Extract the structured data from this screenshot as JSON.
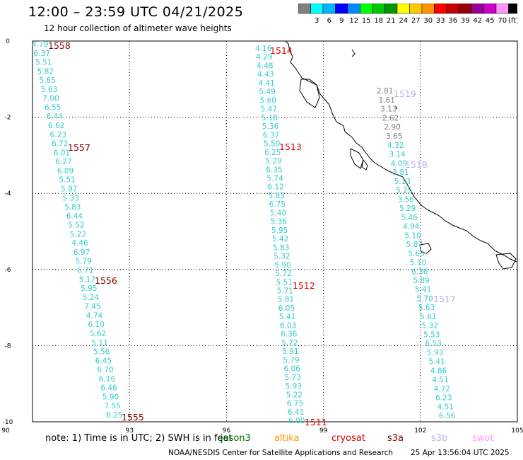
{
  "header": {
    "title": "12:00 – 23:59 UTC 04/21/2025",
    "subtitle": "12 hour collection of altimeter wave heights"
  },
  "legend": {
    "unit": "(ft)",
    "swatches": [
      {
        "label": "",
        "color": "#808080"
      },
      {
        "label": "3",
        "color": "#00ffff"
      },
      {
        "label": "6",
        "color": "#00b4ff"
      },
      {
        "label": "9",
        "color": "#0000ff"
      },
      {
        "label": "12",
        "color": "#008cff"
      },
      {
        "label": "15",
        "color": "#00ff00"
      },
      {
        "label": "18",
        "color": "#00c800"
      },
      {
        "label": "21",
        "color": "#009600"
      },
      {
        "label": "24",
        "color": "#ffff00"
      },
      {
        "label": "27",
        "color": "#ffc800"
      },
      {
        "label": "30",
        "color": "#ff9600"
      },
      {
        "label": "33",
        "color": "#ff0000"
      },
      {
        "label": "36",
        "color": "#c80000"
      },
      {
        "label": "39",
        "color": "#960000"
      },
      {
        "label": "42",
        "color": "#960096"
      },
      {
        "label": "45",
        "color": "#c800c8"
      },
      {
        "label": "70",
        "color": "#ff96ff"
      },
      {
        "label": "",
        "color": "#000000"
      }
    ]
  },
  "axes": {
    "x_ticks": [
      "90",
      "93",
      "96",
      "99",
      "102",
      "105"
    ],
    "y_ticks": [
      "0",
      "-2",
      "-4",
      "-6",
      "-8",
      "-10"
    ]
  },
  "tracks": [
    {
      "color": "#33cccc",
      "values": [
        "4.79",
        "6.37",
        "5.51",
        "5.82",
        "5.65",
        "5.63",
        "7.00",
        "6.55",
        "6.44",
        "6.62",
        "6.23",
        "6.72",
        "6.01",
        "6.27",
        "6.09",
        "5.51",
        "5.97",
        "5.33",
        "5.83",
        "6.44",
        "5.52",
        "5.22",
        "4.46",
        "6.97",
        "5.79",
        "6.71",
        "5.17",
        "5.95",
        "5.24",
        "7.45",
        "4.74",
        "6.10",
        "5.62",
        "5.11",
        "5.56",
        "6.45",
        "6.70",
        "6.16",
        "6.46",
        "5.90",
        "7.55",
        "6.25"
      ],
      "time_labels": [
        {
          "text": "1558",
          "color": "#800000"
        },
        {
          "text": "1557",
          "color": "#800000"
        },
        {
          "text": "1556",
          "color": "#800000"
        },
        {
          "text": "1555",
          "color": "#800000"
        }
      ]
    },
    {
      "color": "#33cccc",
      "values": [
        "4.16",
        "4.29",
        "4.48",
        "4.43",
        "4.41",
        "5.49",
        "5.60",
        "5.47",
        "5.18",
        "5.36",
        "6.37",
        "5.50",
        "6.25",
        "5.29",
        "6.35",
        "5.74",
        "6.12",
        "5.83",
        "6.75",
        "5.40",
        "5.36",
        "5.95",
        "5.42",
        "5.83",
        "5.32",
        "5.90",
        "5.72",
        "5.51",
        "5.71",
        "5.81",
        "6.05",
        "5.41",
        "6.03",
        "6.36",
        "5.72",
        "5.91",
        "5.79",
        "6.06",
        "5.73",
        "5.93",
        "5.22",
        "6.75",
        "6.41",
        "6.00"
      ],
      "time_labels": [
        {
          "text": "1514",
          "color": "#dd0000"
        },
        {
          "text": "1513",
          "color": "#dd0000"
        },
        {
          "text": "1512",
          "color": "#dd0000"
        },
        {
          "text": "1511",
          "color": "#dd0000"
        }
      ]
    },
    {
      "color": "#808080",
      "values": [
        "2.81",
        "1.61",
        "3.13",
        "2.62",
        "2.90",
        "3.65"
      ],
      "time_labels": [
        {
          "text": "1519",
          "color": "#b4b4f0"
        }
      ]
    },
    {
      "color": "#33cccc",
      "values": [
        "4.32",
        "3.14",
        "4.09",
        "3.81",
        "5.13",
        "5.25",
        "3.56",
        "5.29",
        "5.46",
        "4.94",
        "5.10",
        "5.87",
        "5.63",
        "5.10",
        "6.36",
        "5.89",
        "5.41",
        "5.70",
        "5.63",
        "5.61",
        "5.32",
        "5.53",
        "6.53",
        "5.93",
        "5.41",
        "4.86",
        "4.51",
        "4.72",
        "6.23",
        "4.51",
        "6.56"
      ],
      "time_labels": [
        {
          "text": "1518",
          "color": "#b4b4f0"
        },
        {
          "text": "1517",
          "color": "#b4b4f0"
        }
      ]
    }
  ],
  "footer": {
    "note": "note:  1) Time is in UTC; 2) SWH is in feet",
    "satellites": [
      {
        "name": "jason3",
        "color": "#006400"
      },
      {
        "name": "altika",
        "color": "#ff9600"
      },
      {
        "name": "cryosat",
        "color": "#dd0000"
      },
      {
        "name": "s3a",
        "color": "#800000"
      },
      {
        "name": "s3b",
        "color": "#b4b4f0"
      },
      {
        "name": "swot",
        "color": "#ff96ff"
      }
    ],
    "org": "NOAA/NESDIS Center for Satellite Applications and Research",
    "generated": "25 Apr 13:56:04 UTC 2025"
  }
}
